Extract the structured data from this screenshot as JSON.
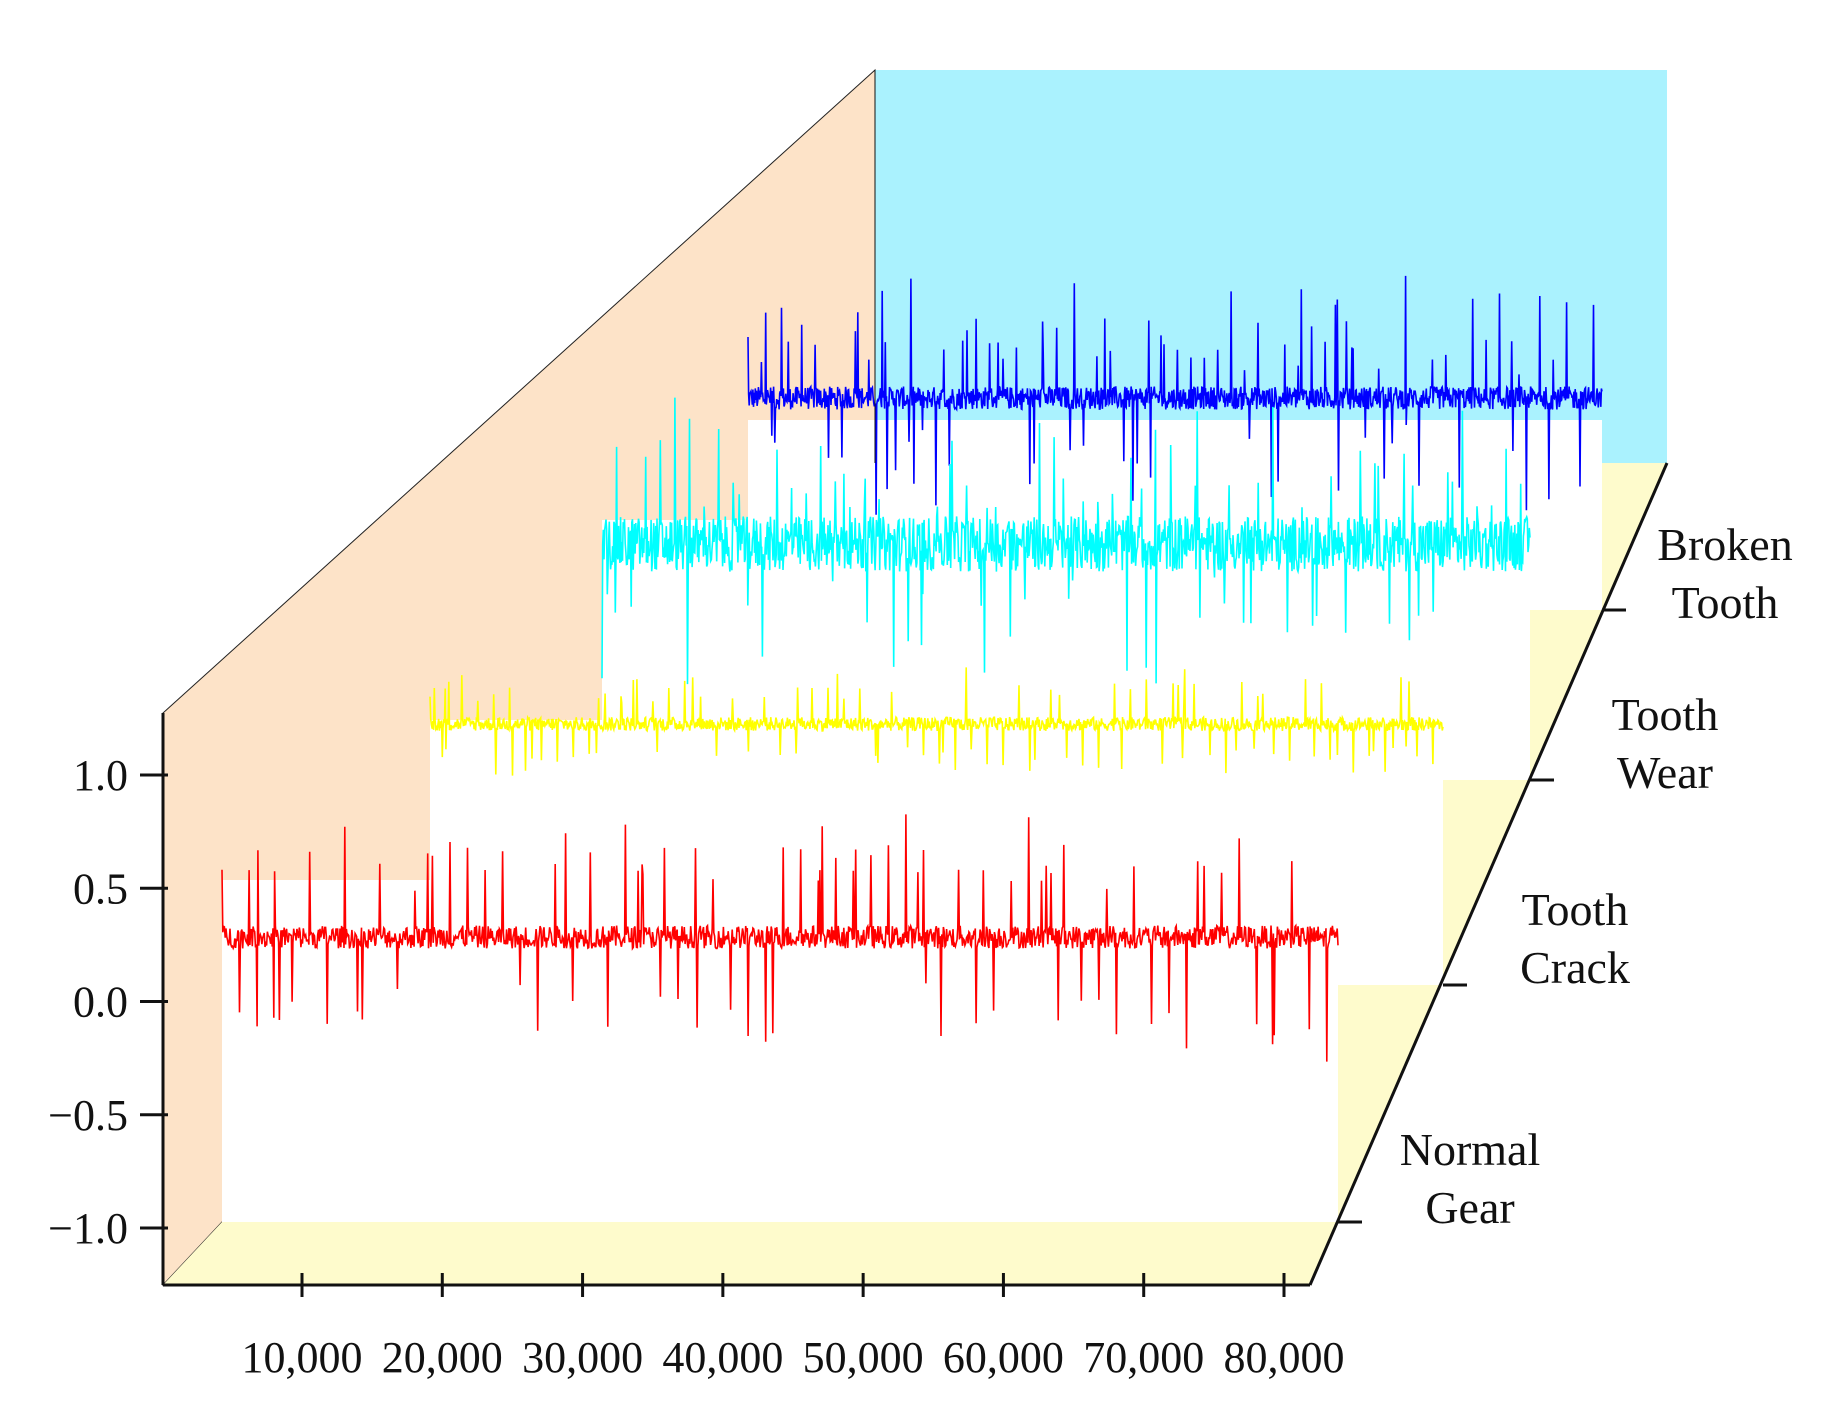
{
  "chart_data": {
    "type": "line",
    "title": "",
    "xlabel": "",
    "ylabel": "",
    "x_ticks": [
      {
        "value": 10000,
        "label": "10,000"
      },
      {
        "value": 20000,
        "label": "20,000"
      },
      {
        "value": 30000,
        "label": "30,000"
      },
      {
        "value": 40000,
        "label": "40,000"
      },
      {
        "value": 50000,
        "label": "50,000"
      },
      {
        "value": 60000,
        "label": "60,000"
      },
      {
        "value": 70000,
        "label": "70,000"
      },
      {
        "value": 80000,
        "label": "80,000"
      }
    ],
    "y_ticks": [
      {
        "value": 1.0,
        "label": "1.0"
      },
      {
        "value": 0.5,
        "label": "0.5"
      },
      {
        "value": 0.0,
        "label": "0.0"
      },
      {
        "value": -0.5,
        "label": "−0.5"
      },
      {
        "value": -1.0,
        "label": "−1.0"
      }
    ],
    "xlim": [
      0,
      80000
    ],
    "ylim": [
      -1.2,
      1.3
    ],
    "series": [
      {
        "name": "Normal Gear",
        "label_lines": [
          "Normal",
          "Gear"
        ],
        "color": "#ff0000",
        "baseline": 0.27,
        "noise": 0.05,
        "spike_up": 0.45,
        "spike_down": 0.55
      },
      {
        "name": "Tooth Crack",
        "label_lines": [
          "Tooth",
          "Crack"
        ],
        "color": "#ffff00",
        "baseline": 0.27,
        "noise": 0.03,
        "spike_up": 0.2,
        "spike_down": 0.22
      },
      {
        "name": "Tooth Wear",
        "label_lines": [
          "Tooth",
          "Wear"
        ],
        "color": "#00ffff",
        "baseline": 0.27,
        "noise": 0.12,
        "spike_up": 0.35,
        "spike_down": 0.6
      },
      {
        "name": "Broken Tooth",
        "label_lines": [
          "Broken",
          "Tooth"
        ],
        "color": "#0000ff",
        "baseline": 0.27,
        "noise": 0.05,
        "spike_up": 0.5,
        "spike_down": 0.25
      }
    ],
    "colors": {
      "left_wall": "#fde3c8",
      "back_wall": "#aaf2fe",
      "floor": "#fefbcc"
    }
  }
}
